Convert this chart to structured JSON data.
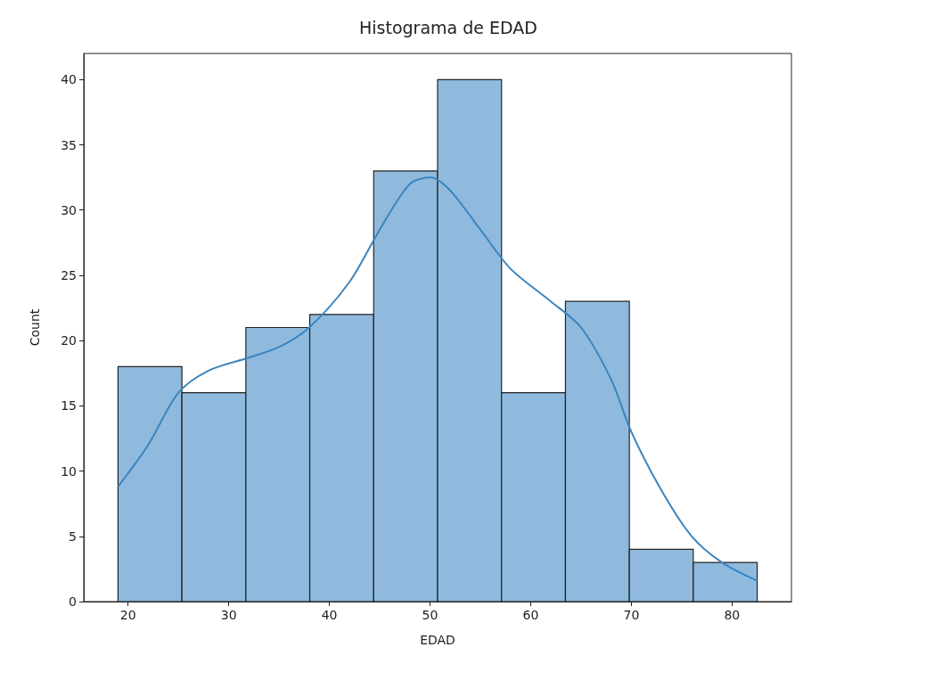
{
  "chart_data": {
    "type": "histogram",
    "title": "Histograma de EDAD",
    "xlabel": "EDAD",
    "ylabel": "Count",
    "series": [
      {
        "color": "#8fbadd",
        "bins": [
          19,
          25.35,
          31.7,
          38.05,
          44.4,
          50.75,
          57.1,
          63.45,
          69.8,
          76.15,
          82.5
        ],
        "values": [
          18,
          16,
          21,
          22,
          33,
          40,
          16,
          23,
          4,
          3
        ]
      },
      {
        "type": "line",
        "color": "#3a85c0",
        "x": [
          19,
          22,
          25,
          28,
          32,
          35,
          38,
          42,
          45,
          48,
          50,
          52,
          55,
          58,
          62,
          65,
          68,
          70,
          73,
          76,
          79,
          82.5
        ],
        "values": [
          8.8,
          12,
          16,
          17.7,
          18.7,
          19.5,
          21,
          24.5,
          28.5,
          32,
          32.5,
          31.5,
          28.5,
          25.5,
          23,
          21,
          17,
          13,
          8.5,
          5,
          3,
          1.6
        ]
      }
    ],
    "xlim": [
      15.6,
      85.9
    ],
    "ylim": [
      0,
      42
    ],
    "xticks": [
      20,
      30,
      40,
      50,
      60,
      70,
      80
    ],
    "yticks": [
      0,
      5,
      10,
      15,
      20,
      25,
      30,
      35,
      40
    ],
    "grid": false,
    "marker": "none",
    "line_style": "solid"
  }
}
